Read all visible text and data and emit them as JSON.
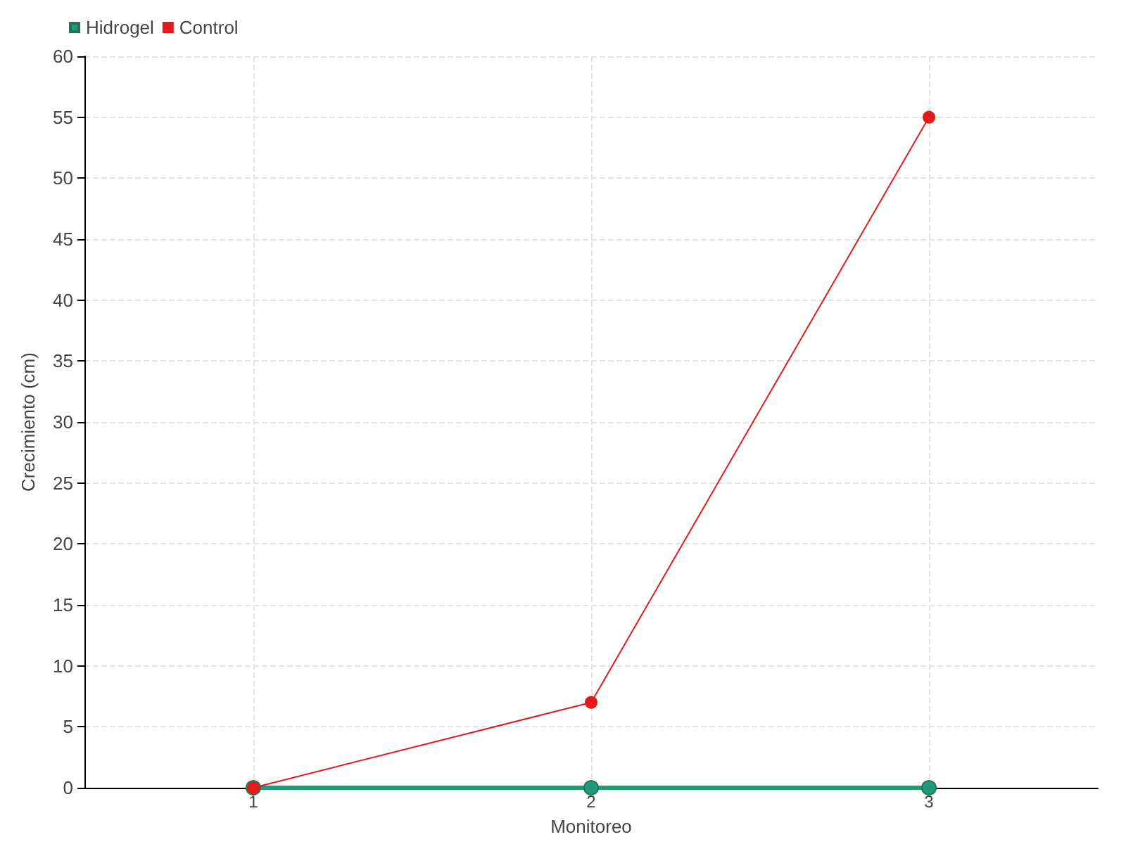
{
  "chart_data": {
    "type": "line",
    "xlabel": "Monitoreo",
    "ylabel": "Crecimiento (cm)",
    "x": [
      1,
      2,
      3
    ],
    "xlim": [
      0.5,
      3.5
    ],
    "xticks": [
      1,
      2,
      3
    ],
    "ylim": [
      0,
      60
    ],
    "yticks": [
      0,
      5,
      10,
      15,
      20,
      25,
      30,
      35,
      40,
      45,
      50,
      55,
      60
    ],
    "series": [
      {
        "name": "Hidrogel",
        "color": "#1b9e77",
        "values": [
          0,
          0,
          0
        ]
      },
      {
        "name": "Control",
        "color": "#e41a1c",
        "values": [
          0,
          7,
          55
        ]
      }
    ],
    "grid": true,
    "legend": "top left",
    "marker": "circle",
    "line_style": "solid"
  }
}
